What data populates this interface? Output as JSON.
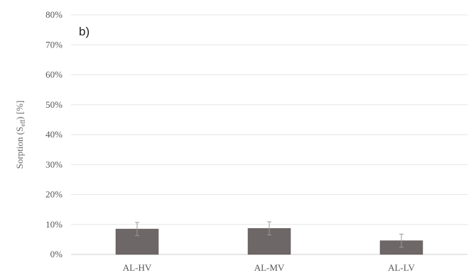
{
  "chart_data": {
    "type": "bar",
    "panel_label": "b)",
    "ylabel": {
      "prefix": "Sorption (S",
      "subscript": "eff",
      "suffix": ") [%]"
    },
    "categories": [
      "AL-HV",
      "AL-MV",
      "AL-LV"
    ],
    "values": [
      8.5,
      8.7,
      4.6
    ],
    "errors": [
      2.2,
      2.2,
      2.2
    ],
    "ylim": [
      0,
      80
    ],
    "yticks": [
      0,
      10,
      20,
      30,
      40,
      50,
      60,
      70,
      80
    ],
    "ytick_labels": [
      "0%",
      "10%",
      "20%",
      "30%",
      "40%",
      "50%",
      "60%",
      "70%",
      "80%"
    ],
    "grid": true,
    "colors": {
      "bar": "#6e6767",
      "bar_edge": "#5a5454",
      "grid": "#e6e6e6",
      "axis": "#cfcfcf",
      "error": "#9a9a9a"
    }
  }
}
